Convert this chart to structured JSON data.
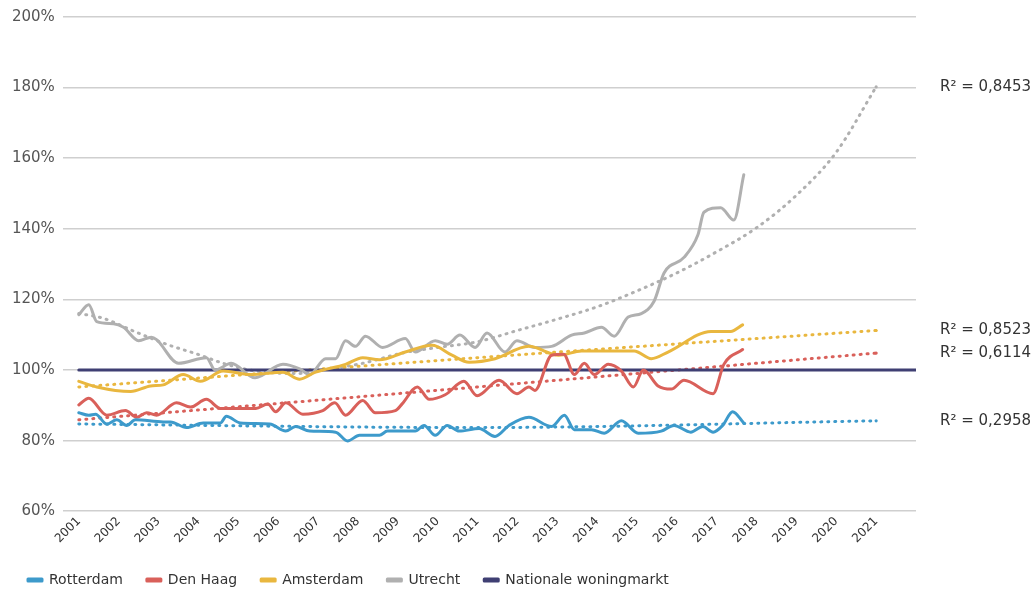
{
  "chart_data": {
    "type": "line",
    "marker": "none",
    "grid": "y",
    "legend": "bottom left",
    "xlim": [
      2000.6,
      2022
    ],
    "xticks": [
      2001,
      2002,
      2003,
      2004,
      2005,
      2006,
      2007,
      2008,
      2009,
      2010,
      2011,
      2012,
      2013,
      2014,
      2015,
      2016,
      2017,
      2018,
      2019,
      2020,
      2021
    ],
    "ylim": [
      60,
      200
    ],
    "yticks": [
      {
        "value": 60,
        "label": "60%"
      },
      {
        "value": 80,
        "label": "80%"
      },
      {
        "value": 100,
        "label": "100%"
      },
      {
        "value": 120,
        "label": "120%"
      },
      {
        "value": 140,
        "label": "140%"
      },
      {
        "value": 160,
        "label": "160%"
      },
      {
        "value": 180,
        "label": "180%"
      },
      {
        "value": 200,
        "label": "200%"
      }
    ],
    "series": [
      {
        "name": "Rotterdam",
        "color": "#3d9acb",
        "x": [
          2001,
          2001.25,
          2001.42,
          2001.7,
          2001.95,
          2002.2,
          2002.42,
          2003.12,
          2003.3,
          2003.7,
          2004.12,
          2004.55,
          2004.7,
          2005.05,
          2005.79,
          2006.19,
          2006.44,
          2006.79,
          2007.44,
          2007.74,
          2008.04,
          2008.54,
          2008.74,
          2009.44,
          2009.66,
          2009.94,
          2010.24,
          2010.54,
          2011.04,
          2011.44,
          2011.79,
          2012.29,
          2012.86,
          2013.18,
          2013.43,
          2013.86,
          2014.18,
          2014.61,
          2015.03,
          2015.61,
          2015.93,
          2016.35,
          2016.65,
          2016.91,
          2017.15,
          2017.4,
          2017.68
        ],
        "values": [
          87.9,
          87.2,
          87.5,
          84.7,
          85.9,
          84.3,
          85.9,
          85.3,
          85.3,
          83.7,
          85,
          85,
          86.9,
          85,
          84.7,
          82.7,
          84,
          82.7,
          82.4,
          79.9,
          81.5,
          81.5,
          82.7,
          82.7,
          84.3,
          81.5,
          84.3,
          82.7,
          83.4,
          81.2,
          84.3,
          86.6,
          84,
          87.2,
          83.1,
          83.1,
          82.1,
          85.6,
          82.1,
          82.7,
          84.3,
          82.4,
          84,
          82.4,
          84.3,
          88.2,
          85
        ]
      },
      {
        "name": "Den Haag",
        "color": "#d9605a",
        "x": [
          2001,
          2001.25,
          2001.7,
          2002.17,
          2002.45,
          2002.7,
          2002.95,
          2003.45,
          2003.8,
          2004.2,
          2004.55,
          2005.12,
          2005.44,
          2005.74,
          2005.94,
          2006.19,
          2006.62,
          2007.12,
          2007.42,
          2007.69,
          2008.12,
          2008.44,
          2008.94,
          2009.11,
          2009.49,
          2009.79,
          2010.19,
          2010.66,
          2010.99,
          2011.54,
          2011.99,
          2012.29,
          2012.44,
          2012.86,
          2013.16,
          2013.43,
          2013.68,
          2013.93,
          2014.28,
          2014.61,
          2014.91,
          2015.16,
          2015.53,
          2015.86,
          2016.18,
          2016.91,
          2017.18,
          2017.65
        ],
        "values": [
          90.1,
          92,
          87.2,
          88.5,
          86.6,
          87.9,
          87.2,
          90.7,
          89.5,
          91.7,
          89.1,
          89.1,
          89.1,
          90.4,
          88.2,
          90.7,
          87.5,
          88.5,
          90.7,
          87.2,
          91.4,
          87.9,
          88.5,
          90.4,
          95.2,
          91.7,
          93,
          96.8,
          92.7,
          97.1,
          93.3,
          95.2,
          94.2,
          104.2,
          104.5,
          98.7,
          101.9,
          98.7,
          101.6,
          99.7,
          95.2,
          100,
          95.5,
          94.6,
          97.1,
          93.3,
          101.6,
          105.8
        ]
      },
      {
        "name": "Amsterdam",
        "color": "#e9b73f",
        "x": [
          2001,
          2001.45,
          2002.3,
          2002.8,
          2003.12,
          2003.62,
          2004.05,
          2004.62,
          2005.29,
          2006.12,
          2006.54,
          2006.94,
          2007.69,
          2008.12,
          2008.54,
          2009.19,
          2009.86,
          2010.36,
          2010.79,
          2011.44,
          2012.29,
          2013.04,
          2013.61,
          2014.93,
          2015.36,
          2015.78,
          2016.86,
          2017.35,
          2017.65
        ],
        "values": [
          96.8,
          95.2,
          93.9,
          95.5,
          95.8,
          98.7,
          96.8,
          99.7,
          98.7,
          99.4,
          97.4,
          99.4,
          101.6,
          103.5,
          102.9,
          105.1,
          107,
          104.2,
          102.2,
          103.2,
          106.7,
          104.2,
          105.4,
          105.4,
          103.2,
          105.1,
          110.9,
          110.9,
          112.8
        ]
      },
      {
        "name": "Utrecht",
        "color": "#b0b0b0",
        "x": [
          2001,
          2001.25,
          2001.45,
          2001.87,
          2002.12,
          2002.5,
          2002.82,
          2002.95,
          2003.5,
          2004.2,
          2004.42,
          2004.82,
          2005.42,
          2006.12,
          2006.54,
          2006.79,
          2007.19,
          2007.44,
          2007.69,
          2007.94,
          2008.19,
          2008.62,
          2009.19,
          2009.44,
          2009.94,
          2010.24,
          2010.56,
          2010.94,
          2011.24,
          2011.69,
          2011.99,
          2012.44,
          2012.86,
          2013.36,
          2013.68,
          2014.11,
          2014.43,
          2014.78,
          2015.11,
          2015.43,
          2015.68,
          2016.18,
          2016.53,
          2016.68,
          2017.1,
          2017.43,
          2017.68
        ],
        "values": [
          115.7,
          118.5,
          113.7,
          113.1,
          112.1,
          108.3,
          109.3,
          108.6,
          101.9,
          103.5,
          100,
          101.9,
          97.8,
          101.6,
          100.3,
          98.7,
          103.2,
          103.2,
          108.3,
          106.7,
          109.6,
          106.4,
          108.9,
          105.1,
          108.3,
          107.3,
          109.9,
          106.4,
          110.5,
          105.1,
          108.3,
          106.4,
          106.7,
          109.9,
          110.5,
          112.1,
          109.6,
          115,
          116,
          119.5,
          127.5,
          131.9,
          138.3,
          144.7,
          146,
          142.5,
          155.3
        ]
      },
      {
        "name": "Nationale woningmarkt",
        "color": "#3f3f73",
        "x": [
          2001,
          2022
        ],
        "values": [
          100,
          100
        ]
      },
      {
        "color": "#3d9acb",
        "line_style": "dotted",
        "x": [
          2001,
          2011,
          2021
        ],
        "values": [
          84.7,
          83.7,
          85.6
        ]
      },
      {
        "color": "#d9605a",
        "line_style": "dotted",
        "x": [
          2001,
          2011,
          2021
        ],
        "values": [
          85.9,
          95.2,
          104.8
        ]
      },
      {
        "color": "#e9b73f",
        "line_style": "dotted",
        "x": [
          2001,
          2011,
          2021
        ],
        "values": [
          95.2,
          103.5,
          111.2
        ]
      },
      {
        "color": "#b0b0b0",
        "line_style": "dotted",
        "x": [
          2001,
          2001.6,
          2002.4,
          2003.2,
          2004.05,
          2004.62,
          2005.45,
          2006.45,
          2007.3,
          2008.12,
          2009.11,
          2010,
          2011,
          2012,
          2013,
          2014,
          2015,
          2016,
          2017,
          2018,
          2019,
          2020,
          2021
        ],
        "values": [
          116,
          114.7,
          110.9,
          107.3,
          104.2,
          101.9,
          99.7,
          99,
          100.3,
          101.9,
          104.8,
          106.4,
          108,
          111.2,
          114.4,
          117.9,
          122.4,
          127.5,
          133.5,
          140.3,
          149.5,
          161.7,
          180.2
        ]
      }
    ],
    "annotations": [
      "R² = 0,8453",
      "R² = 0,8523",
      "R² = 0,6114",
      "R² = 0,2958"
    ]
  }
}
